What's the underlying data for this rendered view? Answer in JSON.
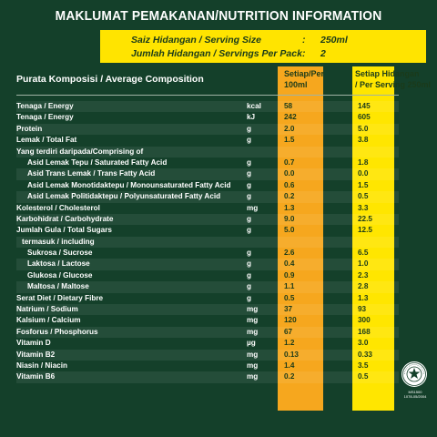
{
  "title": "MAKLUMAT PEMAKANAN/NUTRITION INFORMATION",
  "serving": {
    "size_label": "Saiz Hidangan / Serving Size",
    "size_value": "250ml",
    "count_label": "Jumlah Hidangan / Servings Per Pack",
    "count_value": "2",
    "colon": ":"
  },
  "header": {
    "composition": "Purata Komposisi / Average Composition",
    "per100_line1": "Setiap/Per",
    "per100_line2": "100ml",
    "perserving_line1": "Setiap Hidangan",
    "perserving_line2": "/ Per Serving 250ml"
  },
  "colors": {
    "background": "#14402a",
    "per100_column": "#f6a71e",
    "perserving_column": "#ffe600",
    "serving_box": "#ffe400"
  },
  "rows": [
    {
      "name": "Tenaga / Energy",
      "unit": "kcal",
      "per100": "58",
      "perserving": "145",
      "indent": 0
    },
    {
      "name": "Tenaga / Energy",
      "unit": "kJ",
      "per100": "242",
      "perserving": "605",
      "indent": 0
    },
    {
      "name": "Protein",
      "unit": "g",
      "per100": "2.0",
      "perserving": "5.0",
      "indent": 0
    },
    {
      "name": "Lemak / Total Fat",
      "unit": "g",
      "per100": "1.5",
      "perserving": "3.8",
      "indent": 0
    },
    {
      "name": "Yang terdiri daripada/Comprising of",
      "unit": "",
      "per100": "",
      "perserving": "",
      "indent": 0
    },
    {
      "name": "Asid Lemak Tepu / Saturated Fatty Acid",
      "unit": "g",
      "per100": "0.7",
      "perserving": "1.8",
      "indent": 2
    },
    {
      "name": "Asid Trans Lemak / Trans Fatty Acid",
      "unit": "g",
      "per100": "0.0",
      "perserving": "0.0",
      "indent": 2
    },
    {
      "name": "Asid Lemak Monotidaktepu / Monounsaturated Fatty Acid",
      "unit": "g",
      "per100": "0.6",
      "perserving": "1.5",
      "indent": 2
    },
    {
      "name": "Asid Lemak Politidaktepu / Polyunsaturated Fatty Acid",
      "unit": "g",
      "per100": "0.2",
      "perserving": "0.5",
      "indent": 2
    },
    {
      "name": "Kolesterol / Cholesterol",
      "unit": "mg",
      "per100": "1.3",
      "perserving": "3.3",
      "indent": 0
    },
    {
      "name": "Karbohidrat / Carbohydrate",
      "unit": "g",
      "per100": "9.0",
      "perserving": "22.5",
      "indent": 0
    },
    {
      "name": "Jumlah Gula / Total Sugars",
      "unit": "g",
      "per100": "5.0",
      "perserving": "12.5",
      "indent": 0
    },
    {
      "name": "termasuk / including",
      "unit": "",
      "per100": "",
      "perserving": "",
      "indent": 1
    },
    {
      "name": "Sukrosa / Sucrose",
      "unit": "g",
      "per100": "2.6",
      "perserving": "6.5",
      "indent": 2
    },
    {
      "name": "Laktosa / Lactose",
      "unit": "g",
      "per100": "0.4",
      "perserving": "1.0",
      "indent": 2
    },
    {
      "name": "Glukosa / Glucose",
      "unit": "g",
      "per100": "0.9",
      "perserving": "2.3",
      "indent": 2
    },
    {
      "name": "Maltosa / Maltose",
      "unit": "g",
      "per100": "1.1",
      "perserving": "2.8",
      "indent": 2
    },
    {
      "name": "Serat Diet / Dietary Fibre",
      "unit": "g",
      "per100": "0.5",
      "perserving": "1.3",
      "indent": 0
    },
    {
      "name": "Natrium / Sodium",
      "unit": "mg",
      "per100": "37",
      "perserving": "93",
      "indent": 0
    },
    {
      "name": "Kalsium / Calcium",
      "unit": "mg",
      "per100": "120",
      "perserving": "300",
      "indent": 0
    },
    {
      "name": "Fosforus / Phosphorus",
      "unit": "mg",
      "per100": "67",
      "perserving": "168",
      "indent": 0
    },
    {
      "name": "Vitamin D",
      "unit": "µg",
      "per100": "1.2",
      "perserving": "3.0",
      "indent": 0
    },
    {
      "name": "Vitamin B2",
      "unit": "mg",
      "per100": "0.13",
      "perserving": "0.33",
      "indent": 0
    },
    {
      "name": "Niasin / Niacin",
      "unit": "mg",
      "per100": "1.4",
      "perserving": "3.5",
      "indent": 0
    },
    {
      "name": "Vitamin B6",
      "unit": "mg",
      "per100": "0.2",
      "perserving": "0.5",
      "indent": 0
    }
  ],
  "logo": {
    "icon": "halal-logo-icon",
    "code_line1": "MS1500",
    "code_line2": "1078-05/2004"
  }
}
